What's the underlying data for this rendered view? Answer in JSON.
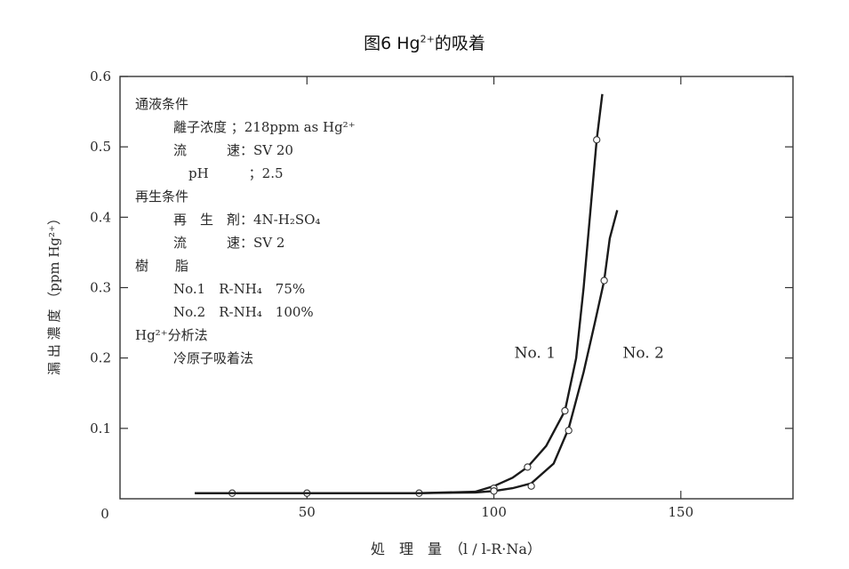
{
  "chart_data": {
    "type": "line",
    "title_main": "图6  Hg",
    "title_sup": "2+",
    "title_tail": "的吸着",
    "xlabel": "処　理　量　（l / l-R·Na）",
    "ylabel": "漏 出 濃 度 （ppm Hg²⁺）",
    "xlim": [
      0,
      180
    ],
    "ylim": [
      0,
      0.6
    ],
    "x_ticks": [
      {
        "value": 50,
        "label": "50"
      },
      {
        "value": 100,
        "label": "100"
      },
      {
        "value": 150,
        "label": "150"
      }
    ],
    "y_ticks": [
      {
        "value": 0.1,
        "label": "0.1"
      },
      {
        "value": 0.2,
        "label": "0.2"
      },
      {
        "value": 0.3,
        "label": "0.3"
      },
      {
        "value": 0.4,
        "label": "0.4"
      },
      {
        "value": 0.5,
        "label": "0.5"
      },
      {
        "value": 0.6,
        "label": "0.6"
      }
    ],
    "origin_label": "0",
    "grid": false,
    "series": [
      {
        "name": "No. 1",
        "line": [
          [
            20,
            0.008
          ],
          [
            50,
            0.008
          ],
          [
            80,
            0.008
          ],
          [
            95,
            0.01
          ],
          [
            100,
            0.018
          ],
          [
            105,
            0.03
          ],
          [
            109,
            0.045
          ],
          [
            114,
            0.075
          ],
          [
            119,
            0.125
          ],
          [
            122,
            0.2
          ],
          [
            124,
            0.3
          ],
          [
            126,
            0.42
          ],
          [
            127.5,
            0.51
          ],
          [
            129,
            0.575
          ]
        ],
        "points": [
          [
            30,
            0.008
          ],
          [
            50,
            0.008
          ],
          [
            80,
            0.008
          ],
          [
            100,
            0.015
          ],
          [
            109,
            0.045
          ],
          [
            119,
            0.125
          ],
          [
            127.5,
            0.51
          ]
        ]
      },
      {
        "name": "No. 2",
        "line": [
          [
            20,
            0.008
          ],
          [
            50,
            0.008
          ],
          [
            80,
            0.008
          ],
          [
            95,
            0.009
          ],
          [
            100,
            0.011
          ],
          [
            105,
            0.015
          ],
          [
            110,
            0.022
          ],
          [
            116,
            0.05
          ],
          [
            120,
            0.1
          ],
          [
            124,
            0.18
          ],
          [
            127,
            0.25
          ],
          [
            129.5,
            0.31
          ],
          [
            131,
            0.37
          ],
          [
            133,
            0.41
          ]
        ],
        "points": [
          [
            100,
            0.011
          ],
          [
            110,
            0.018
          ],
          [
            120,
            0.097
          ],
          [
            129.5,
            0.31
          ]
        ]
      }
    ],
    "series_labels": [
      {
        "text": "No. 1",
        "x": 111,
        "y": 0.208
      },
      {
        "text": "No. 2",
        "x": 140,
        "y": 0.208
      }
    ],
    "annotation_lines": [
      {
        "text": "通液条件",
        "indent": 0
      },
      {
        "text": "離子浓度 ；218ppm as Hg²⁺",
        "indent": 1
      },
      {
        "text": "流　　　速：SV 20",
        "indent": 1
      },
      {
        "text": "pH　　　；2.5",
        "indent": 2
      },
      {
        "text": "再生条件",
        "indent": 0
      },
      {
        "text": "再　生　剤：4N-H₂SO₄",
        "indent": 1
      },
      {
        "text": "流　　　速：SV 2",
        "indent": 1
      },
      {
        "text": "樹　　脂",
        "indent": 0
      },
      {
        "text": "No.1　R-NH₄　75%",
        "indent": 1
      },
      {
        "text": "No.2　R-NH₄　100%",
        "indent": 1
      },
      {
        "text": "Hg²⁺分析法",
        "indent": 0
      },
      {
        "text": "冷原子吸着法",
        "indent": 1
      }
    ]
  }
}
